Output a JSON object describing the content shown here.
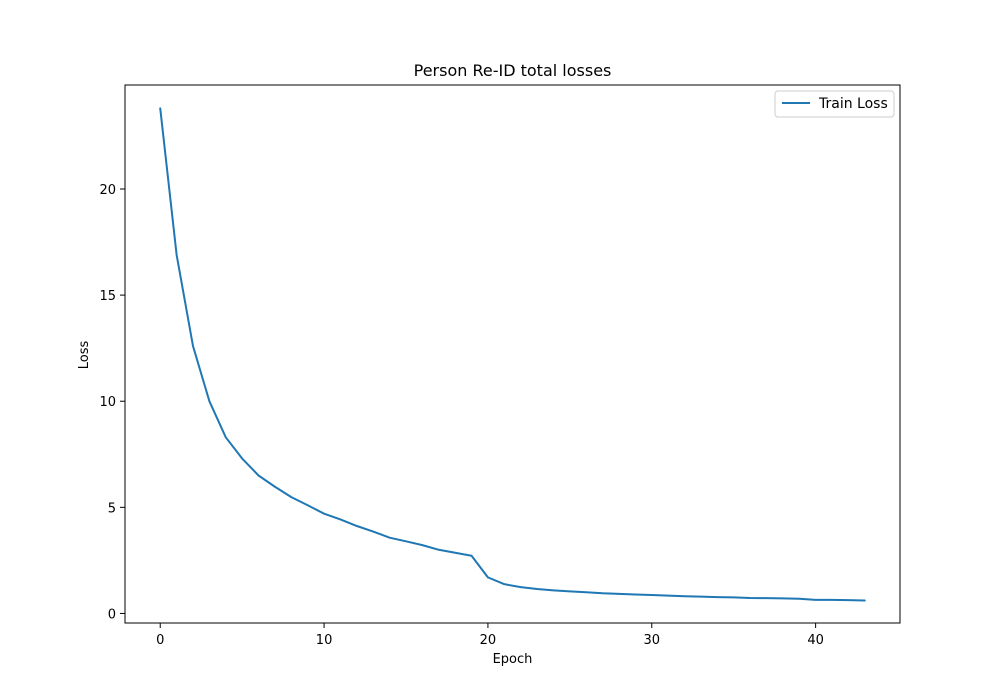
{
  "chart_data": {
    "type": "line",
    "title": "Person Re-ID total losses",
    "xlabel": "Epoch",
    "ylabel": "Loss",
    "xlim": [
      -2.15,
      45.15
    ],
    "ylim": [
      -0.45,
      24.9
    ],
    "xticks": [
      0,
      10,
      20,
      30,
      40
    ],
    "yticks": [
      0,
      5,
      10,
      15,
      20
    ],
    "grid": false,
    "legend_position": "top-right",
    "series": [
      {
        "name": "Train Loss",
        "color": "#1f77b4",
        "x": [
          0,
          1,
          2,
          3,
          4,
          5,
          6,
          7,
          8,
          9,
          10,
          11,
          12,
          13,
          14,
          15,
          16,
          17,
          18,
          19,
          20,
          21,
          22,
          23,
          24,
          25,
          26,
          27,
          28,
          29,
          30,
          31,
          32,
          33,
          34,
          35,
          36,
          37,
          38,
          39,
          40,
          41,
          42,
          43
        ],
        "y": [
          23.8,
          16.9,
          12.6,
          10.0,
          8.3,
          7.3,
          6.5,
          5.97,
          5.48,
          5.1,
          4.7,
          4.43,
          4.12,
          3.86,
          3.57,
          3.4,
          3.22,
          3.0,
          2.86,
          2.72,
          1.7,
          1.38,
          1.24,
          1.15,
          1.09,
          1.04,
          1.0,
          0.95,
          0.92,
          0.89,
          0.87,
          0.84,
          0.81,
          0.79,
          0.77,
          0.76,
          0.73,
          0.72,
          0.71,
          0.69,
          0.64,
          0.64,
          0.63,
          0.61
        ]
      }
    ]
  }
}
